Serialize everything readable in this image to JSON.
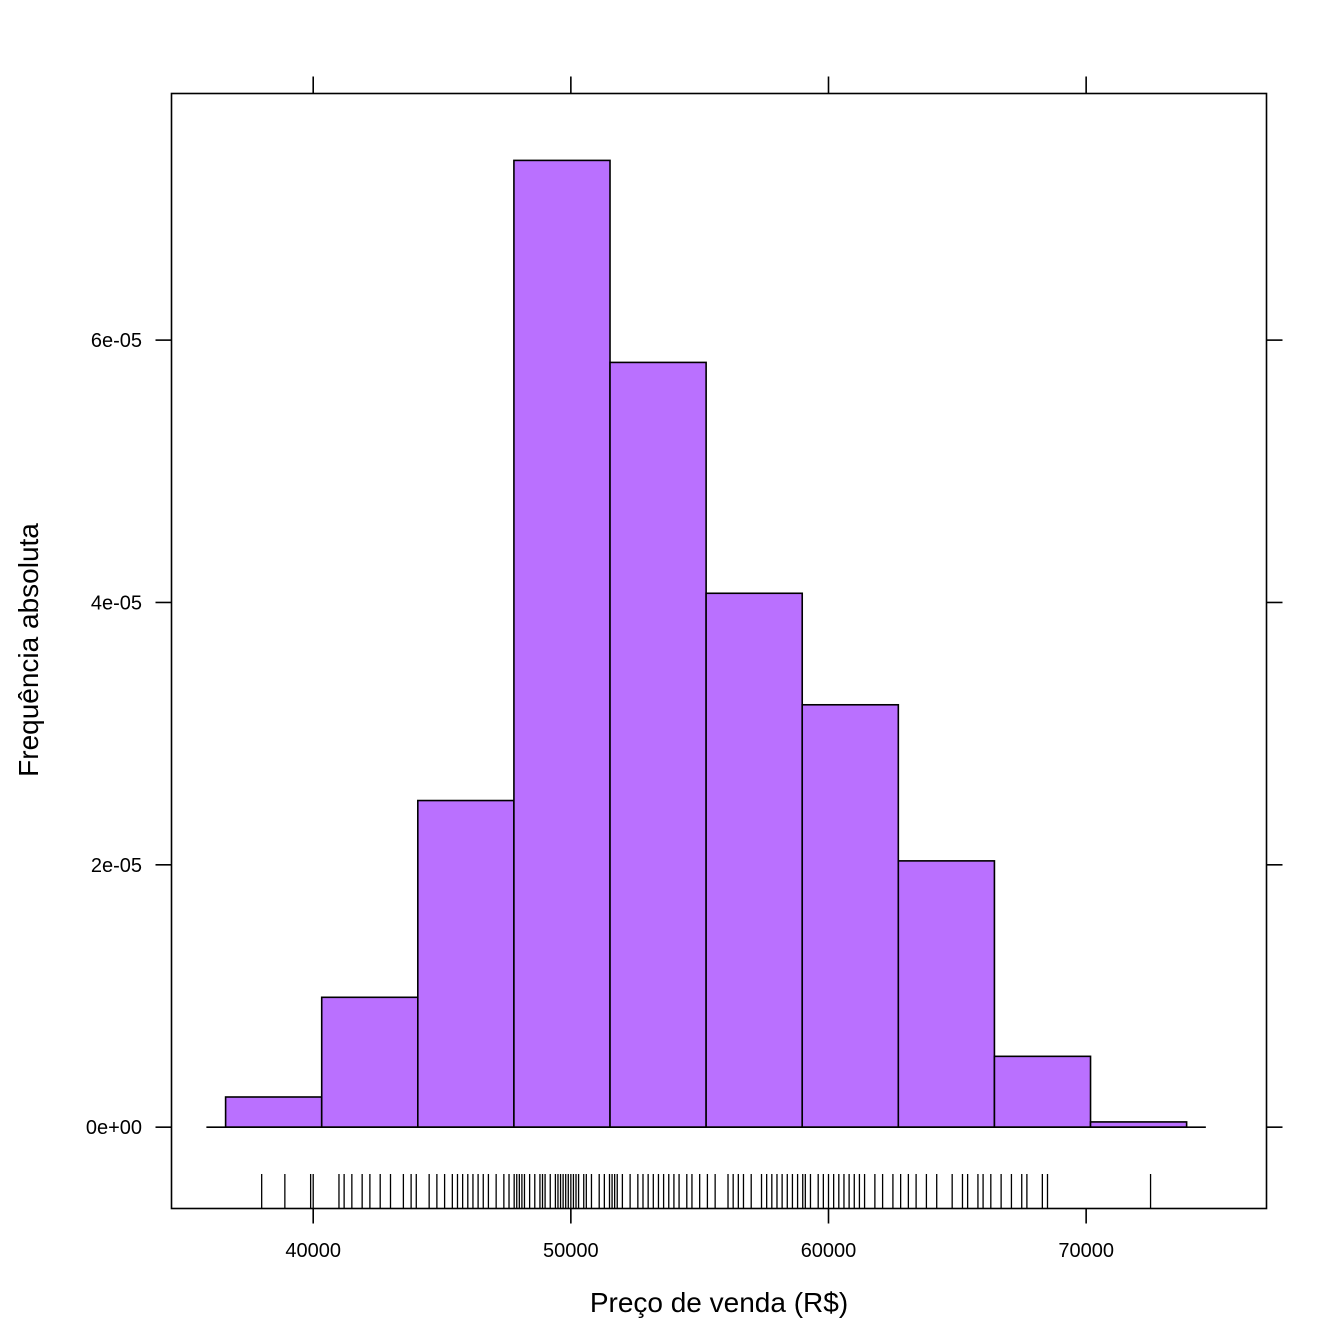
{
  "chart_data": {
    "type": "bar",
    "subtype": "histogram",
    "xlabel": "Preço de venda (R$)",
    "ylabel": "Frequência absoluta",
    "xlim": [
      34500,
      77000
    ],
    "ylim": [
      -6.2e-06,
      7.88e-05
    ],
    "grid": false,
    "bar_color": "#BA70FF",
    "edge_color": "#000000",
    "x_ticks": [
      {
        "value": 40000,
        "label": "40000"
      },
      {
        "value": 50000,
        "label": "50000"
      },
      {
        "value": 60000,
        "label": "60000"
      },
      {
        "value": 70000,
        "label": "70000"
      }
    ],
    "y_ticks": [
      {
        "value": 0,
        "label": "0e+00"
      },
      {
        "value": 2e-05,
        "label": "2e-05"
      },
      {
        "value": 4e-05,
        "label": "4e-05"
      },
      {
        "value": 6e-05,
        "label": "6e-05"
      }
    ],
    "bins": [
      {
        "x0": 36600,
        "x1": 40330,
        "value": 2.3e-06
      },
      {
        "x0": 40330,
        "x1": 44060,
        "value": 9.9e-06
      },
      {
        "x0": 44060,
        "x1": 47790,
        "value": 2.49e-05
      },
      {
        "x0": 47790,
        "x1": 51520,
        "value": 7.37e-05
      },
      {
        "x0": 51520,
        "x1": 55250,
        "value": 5.83e-05
      },
      {
        "x0": 55250,
        "x1": 58980,
        "value": 4.07e-05
      },
      {
        "x0": 58980,
        "x1": 62710,
        "value": 3.22e-05
      },
      {
        "x0": 62710,
        "x1": 66440,
        "value": 2.03e-05
      },
      {
        "x0": 66440,
        "x1": 70170,
        "value": 5.4e-06
      },
      {
        "x0": 70170,
        "x1": 73900,
        "value": 4e-07
      }
    ],
    "rug": [
      38000,
      38900,
      39900,
      40000,
      41000,
      41200,
      41500,
      41900,
      42200,
      42600,
      43000,
      43500,
      43800,
      44000,
      44500,
      44800,
      45100,
      45400,
      45600,
      45800,
      46000,
      46200,
      46400,
      46600,
      46800,
      47100,
      47400,
      47600,
      47800,
      47900,
      48000,
      48100,
      48200,
      48400,
      48600,
      48800,
      48900,
      49000,
      49200,
      49400,
      49500,
      49600,
      49700,
      49800,
      49900,
      50000,
      50100,
      50200,
      50300,
      50500,
      50600,
      50800,
      51100,
      51300,
      51500,
      51600,
      51700,
      51800,
      52000,
      52300,
      52600,
      52800,
      53000,
      53200,
      53400,
      53600,
      53800,
      54000,
      54200,
      54500,
      54700,
      55000,
      55300,
      55600,
      56100,
      56300,
      56500,
      56700,
      57000,
      57400,
      57600,
      57800,
      58000,
      58200,
      58400,
      58600,
      58800,
      59000,
      59100,
      59300,
      59600,
      59800,
      60000,
      60200,
      60400,
      60600,
      60800,
      61000,
      61200,
      61400,
      61800,
      62100,
      62500,
      62800,
      63100,
      63400,
      63800,
      64200,
      64800,
      65200,
      65400,
      65800,
      66000,
      66300,
      66700,
      67100,
      67500,
      67700,
      68300,
      68500,
      72500
    ]
  }
}
